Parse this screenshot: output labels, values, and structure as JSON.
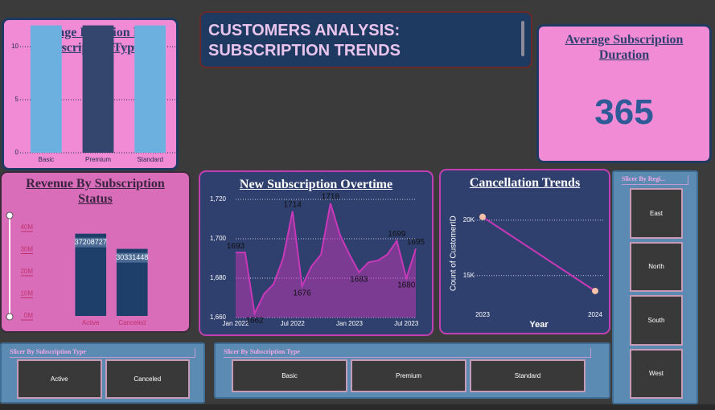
{
  "title": "CUSTOMERS ANALYSIS: SUBSCRIPTION TRENDS",
  "kpi": {
    "title": "Average Subscription Duration",
    "value": 365
  },
  "chart_data": [
    {
      "type": "bar",
      "title": "Average Duration By Subscription Type",
      "categories": [
        "Basic",
        "Premium",
        "Standard"
      ],
      "values": [
        12,
        12,
        12
      ],
      "colors": [
        "#6cb0e0",
        "#34466e",
        "#6cb0e0"
      ],
      "ylim": [
        0,
        12.5
      ],
      "yticks": [
        0,
        5,
        10
      ],
      "grid": true
    },
    {
      "type": "bar",
      "title": "Revenue By Subscription Status",
      "categories": [
        "Active",
        "Canceled"
      ],
      "values": [
        37208727,
        30331448
      ],
      "color": "#1e3f6a",
      "ylim": [
        0,
        40000000
      ],
      "yticks": [
        {
          "value": 0,
          "label": "0M"
        },
        {
          "value": 10000000,
          "label": "10M"
        },
        {
          "value": 20000000,
          "label": "20M"
        },
        {
          "value": 30000000,
          "label": "30M"
        },
        {
          "value": 40000000,
          "label": "40M"
        }
      ],
      "grid": false,
      "data_labels": true
    },
    {
      "type": "area",
      "title": "New Subscription Overtime",
      "x": [
        "2022-01",
        "2022-02",
        "2022-03",
        "2022-04",
        "2022-05",
        "2022-06",
        "2022-07",
        "2022-08",
        "2022-09",
        "2022-10",
        "2022-11",
        "2022-12",
        "2023-01",
        "2023-02",
        "2023-03",
        "2023-04",
        "2023-05",
        "2023-06",
        "2023-07",
        "2023-08"
      ],
      "values": [
        1693,
        1693,
        1662,
        1672,
        1677,
        1690,
        1714,
        1676,
        1686,
        1692,
        1718,
        1702,
        1692,
        1683,
        1688,
        1689,
        1692,
        1699,
        1680,
        1695
      ],
      "color": "#c838b8",
      "xlim": [
        "2022-01",
        "2023-08"
      ],
      "xticks": [
        {
          "value": "2022-01",
          "label": "Jan 2022"
        },
        {
          "value": "2022-07",
          "label": "Jul 2022"
        },
        {
          "value": "2023-01",
          "label": "Jan 2023"
        },
        {
          "value": "2023-07",
          "label": "Jul 2023"
        }
      ],
      "ylim": [
        1660,
        1720
      ],
      "yticks": [
        {
          "value": 1660,
          "label": "1,660"
        },
        {
          "value": 1680,
          "label": "1,680"
        },
        {
          "value": 1700,
          "label": "1,700"
        },
        {
          "value": 1720,
          "label": "1,720"
        }
      ],
      "grid": true,
      "data_labels": true
    },
    {
      "type": "line",
      "title": "Cancellation Trends",
      "x": [
        2023,
        2024
      ],
      "values": [
        20300,
        13600
      ],
      "color": "#c838b8",
      "marker_color": "#f4c0a8",
      "xlim": [
        2023,
        2024
      ],
      "xticks": [
        2023,
        2024
      ],
      "ylim": [
        12000,
        22000
      ],
      "yticks": [
        {
          "value": 15000,
          "label": "15K"
        },
        {
          "value": 20000,
          "label": "20K"
        }
      ],
      "xlabel": "Year",
      "ylabel": "Count of CustomerID",
      "grid": true
    }
  ],
  "slicers": [
    {
      "title": "Slicer By Subscription Type",
      "items": [
        "Active",
        "Canceled"
      ]
    },
    {
      "title": "Slicer By Subscription Type",
      "items": [
        "Basic",
        "Premium",
        "Standard"
      ]
    },
    {
      "title": "Slicer By Regi...",
      "items": [
        "East",
        "North",
        "South",
        "West"
      ]
    }
  ]
}
